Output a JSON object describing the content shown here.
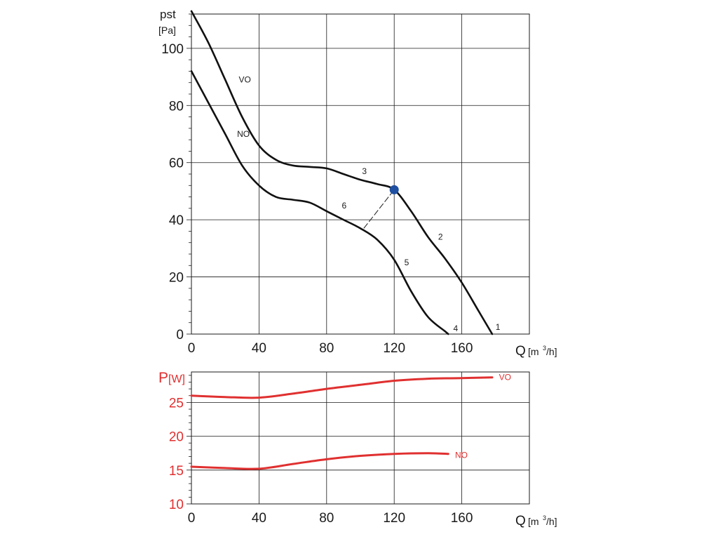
{
  "chart_data": [
    {
      "type": "line",
      "ylabel": "pst",
      "yunit": "[Pa]",
      "xlabel": "Q",
      "xunit": "[m",
      "xunit_sup": "3",
      "xunit_end": "/h]",
      "xlim": [
        0,
        200
      ],
      "ylim": [
        0,
        112
      ],
      "xticks": [
        0,
        40,
        80,
        120,
        160
      ],
      "yticks": [
        0,
        20,
        40,
        60,
        80,
        100
      ],
      "grid": true,
      "series": [
        {
          "name": "VO",
          "color": "#111111",
          "points": [
            [
              0,
              113
            ],
            [
              10,
              102
            ],
            [
              20,
              89
            ],
            [
              30,
              76
            ],
            [
              40,
              66
            ],
            [
              50,
              61
            ],
            [
              60,
              59
            ],
            [
              70,
              58.5
            ],
            [
              80,
              58
            ],
            [
              90,
              56
            ],
            [
              100,
              54
            ],
            [
              110,
              52.5
            ],
            [
              120,
              50.5
            ],
            [
              130,
              43
            ],
            [
              140,
              34
            ],
            [
              150,
              26.5
            ],
            [
              160,
              18
            ],
            [
              170,
              8
            ],
            [
              178,
              0
            ]
          ]
        },
        {
          "name": "NO",
          "color": "#111111",
          "points": [
            [
              0,
              92
            ],
            [
              10,
              81
            ],
            [
              20,
              70
            ],
            [
              30,
              59
            ],
            [
              40,
              52
            ],
            [
              50,
              48
            ],
            [
              60,
              47
            ],
            [
              70,
              46
            ],
            [
              80,
              43
            ],
            [
              90,
              40
            ],
            [
              100,
              37
            ],
            [
              110,
              33
            ],
            [
              120,
              26
            ],
            [
              130,
              15
            ],
            [
              140,
              6
            ],
            [
              150,
              1
            ],
            [
              152,
              0
            ]
          ]
        }
      ],
      "annotations": [
        {
          "text": "VO",
          "x": 28,
          "y": 89
        },
        {
          "text": "NO",
          "x": 27,
          "y": 70
        },
        {
          "text": "1",
          "x": 180,
          "y": 2.5
        },
        {
          "text": "2",
          "x": 146,
          "y": 34
        },
        {
          "text": "3",
          "x": 101,
          "y": 57
        },
        {
          "text": "4",
          "x": 155,
          "y": 2
        },
        {
          "text": "5",
          "x": 126,
          "y": 25
        },
        {
          "text": "6",
          "x": 89,
          "y": 45
        }
      ],
      "operating_point": {
        "x": 120,
        "y": 50.5,
        "color": "#1f4fa0"
      },
      "dashed_line": {
        "from": [
          102,
          37
        ],
        "to": [
          120,
          50.5
        ]
      }
    },
    {
      "type": "line",
      "ylabel": "P",
      "yunit": "[W]",
      "xlabel": "Q",
      "xunit": "[m",
      "xunit_sup": "3",
      "xunit_end": "/h]",
      "xlim": [
        0,
        200
      ],
      "ylim": [
        10,
        29.5
      ],
      "xticks": [
        0,
        40,
        80,
        120,
        160
      ],
      "yticks": [
        10,
        15,
        20,
        25
      ],
      "grid": true,
      "color": "#e03030",
      "series": [
        {
          "name": "VO",
          "color": "#e03030",
          "points": [
            [
              0,
              26
            ],
            [
              20,
              25.8
            ],
            [
              40,
              25.7
            ],
            [
              60,
              26.3
            ],
            [
              80,
              27
            ],
            [
              100,
              27.6
            ],
            [
              120,
              28.2
            ],
            [
              140,
              28.5
            ],
            [
              160,
              28.6
            ],
            [
              178,
              28.7
            ]
          ]
        },
        {
          "name": "NO",
          "color": "#e03030",
          "points": [
            [
              0,
              15.5
            ],
            [
              20,
              15.3
            ],
            [
              40,
              15.2
            ],
            [
              60,
              15.9
            ],
            [
              80,
              16.6
            ],
            [
              100,
              17.1
            ],
            [
              120,
              17.4
            ],
            [
              140,
              17.5
            ],
            [
              152,
              17.4
            ]
          ]
        }
      ],
      "annotations": [
        {
          "text": "VO",
          "x": 182,
          "y": 28.7
        },
        {
          "text": "NO",
          "x": 156,
          "y": 17.2
        }
      ]
    }
  ]
}
